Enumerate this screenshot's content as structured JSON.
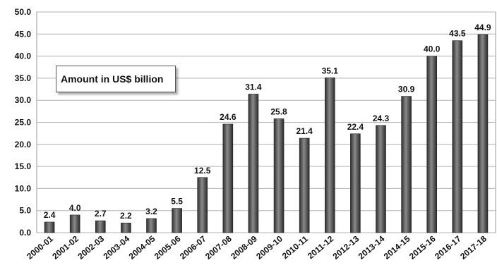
{
  "chart_data": {
    "type": "bar",
    "title": "",
    "xlabel": "",
    "ylabel": "",
    "annotation": "Amount in US$ billion",
    "ylim": [
      0,
      50
    ],
    "yticks": [
      "0.0",
      "5.0",
      "10.0",
      "15.0",
      "20.0",
      "25.0",
      "30.0",
      "35.0",
      "40.0",
      "45.0",
      "50.0"
    ],
    "grid": true,
    "bar_color": "#555555",
    "categories": [
      "2000-01",
      "2001-02",
      "2002-03",
      "2003-04",
      "2004-05",
      "2005-06",
      "2006-07",
      "2007-08",
      "2008-09",
      "2009-10",
      "2010-11",
      "2011-12",
      "2012-13",
      "2013-14",
      "2014-15",
      "2015-16",
      "2016-17",
      "2017-18"
    ],
    "values": [
      2.4,
      4.0,
      2.7,
      2.2,
      3.2,
      5.5,
      12.5,
      24.6,
      31.4,
      25.8,
      21.4,
      35.1,
      22.4,
      24.3,
      30.9,
      40.0,
      43.5,
      44.9
    ],
    "value_labels": [
      "2.4",
      "4.0",
      "2.7",
      "2.2",
      "3.2",
      "5.5",
      "12.5",
      "24.6",
      "31.4",
      "25.8",
      "21.4",
      "35.1",
      "22.4",
      "24.3",
      "30.9",
      "40.0",
      "43.5",
      "44.9"
    ]
  }
}
